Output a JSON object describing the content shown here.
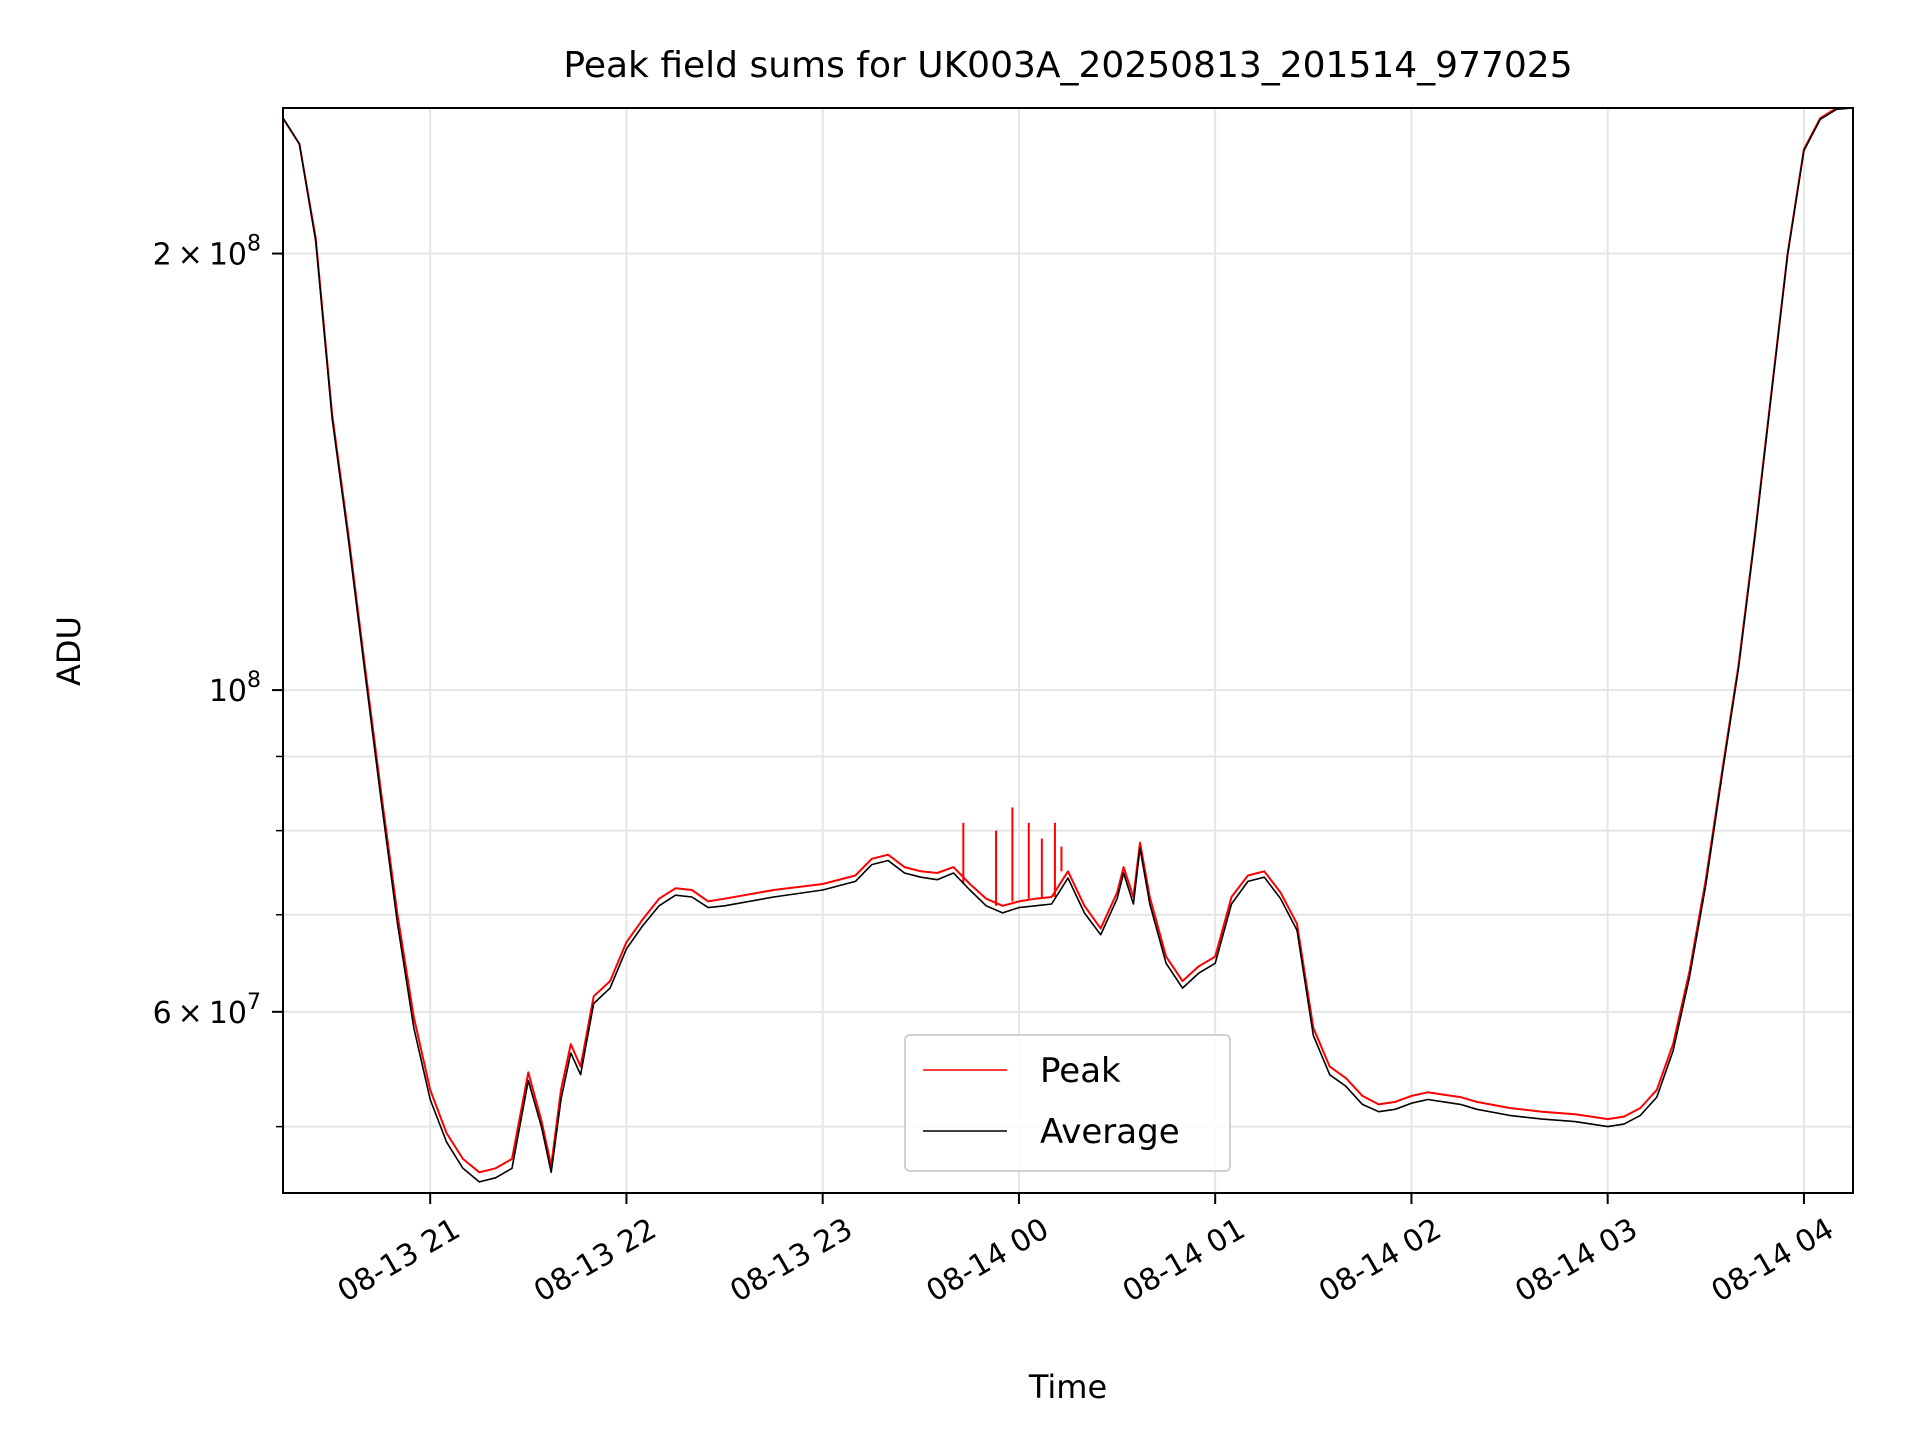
{
  "chart_data": {
    "type": "line",
    "title": "Peak field sums for UK003A_20250813_201514_977025",
    "xlabel": "Time",
    "ylabel": "ADU",
    "x_range": [
      "2025-08-13 20:15",
      "2025-08-14 04:15"
    ],
    "y_range": [
      45000000,
      252000000
    ],
    "y_scale": "log",
    "grid": true,
    "legend_position": "lower center",
    "x_tick_labels": [
      "08-13 21",
      "08-13 22",
      "08-13 23",
      "08-14 00",
      "08-14 01",
      "08-14 02",
      "08-14 03",
      "08-14 04"
    ],
    "x_ticks": [
      "2025-08-13 21:00",
      "2025-08-13 22:00",
      "2025-08-13 23:00",
      "2025-08-14 00:00",
      "2025-08-14 01:00",
      "2025-08-14 02:00",
      "2025-08-14 03:00",
      "2025-08-14 04:00"
    ],
    "y_major_ticks": [
      {
        "value": 200000000,
        "mantissa": "2",
        "exponent": "8"
      },
      {
        "value": 100000000,
        "mantissa": "",
        "exponent": "8"
      },
      {
        "value": 60000000,
        "mantissa": "6",
        "exponent": "7"
      }
    ],
    "y_minor_ticks": [
      50000000,
      70000000,
      80000000,
      90000000
    ],
    "series": [
      {
        "name": "Peak",
        "color": "#ff0000",
        "x": [
          "2025-08-13 20:15",
          "2025-08-13 20:20",
          "2025-08-13 20:25",
          "2025-08-13 20:30",
          "2025-08-13 20:35",
          "2025-08-13 20:40",
          "2025-08-13 20:45",
          "2025-08-13 20:50",
          "2025-08-13 20:55",
          "2025-08-13 21:00",
          "2025-08-13 21:05",
          "2025-08-13 21:10",
          "2025-08-13 21:15",
          "2025-08-13 21:20",
          "2025-08-13 21:25",
          "2025-08-13 21:30",
          "2025-08-13 21:34",
          "2025-08-13 21:37",
          "2025-08-13 21:40",
          "2025-08-13 21:43",
          "2025-08-13 21:46",
          "2025-08-13 21:50",
          "2025-08-13 21:55",
          "2025-08-13 22:00",
          "2025-08-13 22:05",
          "2025-08-13 22:10",
          "2025-08-13 22:15",
          "2025-08-13 22:20",
          "2025-08-13 22:25",
          "2025-08-13 22:30",
          "2025-08-13 22:45",
          "2025-08-13 23:00",
          "2025-08-13 23:10",
          "2025-08-13 23:15",
          "2025-08-13 23:20",
          "2025-08-13 23:25",
          "2025-08-13 23:30",
          "2025-08-13 23:35",
          "2025-08-13 23:40",
          "2025-08-13 23:45",
          "2025-08-13 23:50",
          "2025-08-13 23:55",
          "2025-08-14 00:00",
          "2025-08-14 00:05",
          "2025-08-14 00:10",
          "2025-08-14 00:15",
          "2025-08-14 00:20",
          "2025-08-14 00:25",
          "2025-08-14 00:30",
          "2025-08-14 00:32",
          "2025-08-14 00:35",
          "2025-08-14 00:37",
          "2025-08-14 00:40",
          "2025-08-14 00:45",
          "2025-08-14 00:50",
          "2025-08-14 00:55",
          "2025-08-14 01:00",
          "2025-08-14 01:05",
          "2025-08-14 01:10",
          "2025-08-14 01:15",
          "2025-08-14 01:20",
          "2025-08-14 01:25",
          "2025-08-14 01:30",
          "2025-08-14 01:35",
          "2025-08-14 01:40",
          "2025-08-14 01:45",
          "2025-08-14 01:50",
          "2025-08-14 01:55",
          "2025-08-14 02:00",
          "2025-08-14 02:05",
          "2025-08-14 02:10",
          "2025-08-14 02:15",
          "2025-08-14 02:20",
          "2025-08-14 02:30",
          "2025-08-14 02:40",
          "2025-08-14 02:50",
          "2025-08-14 02:55",
          "2025-08-14 03:00",
          "2025-08-14 03:05",
          "2025-08-14 03:10",
          "2025-08-14 03:15",
          "2025-08-14 03:20",
          "2025-08-14 03:25",
          "2025-08-14 03:30",
          "2025-08-14 03:35",
          "2025-08-14 03:40",
          "2025-08-14 03:45",
          "2025-08-14 03:50",
          "2025-08-14 03:55",
          "2025-08-14 04:00",
          "2025-08-14 04:05",
          "2025-08-14 04:10",
          "2025-08-14 04:15"
        ],
        "y": [
          248000000,
          238000000,
          205000000,
          155000000,
          128000000,
          104000000,
          85000000,
          70000000,
          59500000,
          53000000,
          49500000,
          47500000,
          46500000,
          46800000,
          47500000,
          54500000,
          50500000,
          47000000,
          53000000,
          57000000,
          55000000,
          61500000,
          63000000,
          67000000,
          69500000,
          71800000,
          73000000,
          72800000,
          71500000,
          71800000,
          72800000,
          73500000,
          74500000,
          76500000,
          77000000,
          75500000,
          75000000,
          74800000,
          75500000,
          73500000,
          71800000,
          71000000,
          71500000,
          71800000,
          72000000,
          75000000,
          71000000,
          68500000,
          72500000,
          75500000,
          72000000,
          78500000,
          72000000,
          65500000,
          63000000,
          64500000,
          65500000,
          72000000,
          74500000,
          75000000,
          72500000,
          69000000,
          58500000,
          55000000,
          54000000,
          52500000,
          51800000,
          52000000,
          52500000,
          52800000,
          52600000,
          52400000,
          52000000,
          51500000,
          51200000,
          51000000,
          50800000,
          50600000,
          50800000,
          51500000,
          53000000,
          57000000,
          64000000,
          74000000,
          88000000,
          104000000,
          128000000,
          160000000,
          200000000,
          236000000,
          248000000,
          252000000,
          252000000
        ],
        "spikes": [
          {
            "x": "2025-08-13 23:43",
            "y": 81000000
          },
          {
            "x": "2025-08-13 23:53",
            "y": 80000000
          },
          {
            "x": "2025-08-13 23:58",
            "y": 83000000
          },
          {
            "x": "2025-08-14 00:03",
            "y": 81000000
          },
          {
            "x": "2025-08-14 00:07",
            "y": 79000000
          },
          {
            "x": "2025-08-14 00:11",
            "y": 81000000
          },
          {
            "x": "2025-08-14 00:13",
            "y": 78000000
          }
        ]
      },
      {
        "name": "Average",
        "color": "#000000",
        "x": [
          "2025-08-13 20:15",
          "2025-08-13 20:20",
          "2025-08-13 20:25",
          "2025-08-13 20:30",
          "2025-08-13 20:35",
          "2025-08-13 20:40",
          "2025-08-13 20:45",
          "2025-08-13 20:50",
          "2025-08-13 20:55",
          "2025-08-13 21:00",
          "2025-08-13 21:05",
          "2025-08-13 21:10",
          "2025-08-13 21:15",
          "2025-08-13 21:20",
          "2025-08-13 21:25",
          "2025-08-13 21:30",
          "2025-08-13 21:34",
          "2025-08-13 21:37",
          "2025-08-13 21:40",
          "2025-08-13 21:43",
          "2025-08-13 21:46",
          "2025-08-13 21:50",
          "2025-08-13 21:55",
          "2025-08-13 22:00",
          "2025-08-13 22:05",
          "2025-08-13 22:10",
          "2025-08-13 22:15",
          "2025-08-13 22:20",
          "2025-08-13 22:25",
          "2025-08-13 22:30",
          "2025-08-13 22:45",
          "2025-08-13 23:00",
          "2025-08-13 23:10",
          "2025-08-13 23:15",
          "2025-08-13 23:20",
          "2025-08-13 23:25",
          "2025-08-13 23:30",
          "2025-08-13 23:35",
          "2025-08-13 23:40",
          "2025-08-13 23:45",
          "2025-08-13 23:50",
          "2025-08-13 23:55",
          "2025-08-14 00:00",
          "2025-08-14 00:05",
          "2025-08-14 00:10",
          "2025-08-14 00:15",
          "2025-08-14 00:20",
          "2025-08-14 00:25",
          "2025-08-14 00:30",
          "2025-08-14 00:32",
          "2025-08-14 00:35",
          "2025-08-14 00:37",
          "2025-08-14 00:40",
          "2025-08-14 00:45",
          "2025-08-14 00:50",
          "2025-08-14 00:55",
          "2025-08-14 01:00",
          "2025-08-14 01:05",
          "2025-08-14 01:10",
          "2025-08-14 01:15",
          "2025-08-14 01:20",
          "2025-08-14 01:25",
          "2025-08-14 01:30",
          "2025-08-14 01:35",
          "2025-08-14 01:40",
          "2025-08-14 01:45",
          "2025-08-14 01:50",
          "2025-08-14 01:55",
          "2025-08-14 02:00",
          "2025-08-14 02:05",
          "2025-08-14 02:10",
          "2025-08-14 02:15",
          "2025-08-14 02:20",
          "2025-08-14 02:30",
          "2025-08-14 02:40",
          "2025-08-14 02:50",
          "2025-08-14 02:55",
          "2025-08-14 03:00",
          "2025-08-14 03:05",
          "2025-08-14 03:10",
          "2025-08-14 03:15",
          "2025-08-14 03:20",
          "2025-08-14 03:25",
          "2025-08-14 03:30",
          "2025-08-14 03:35",
          "2025-08-14 03:40",
          "2025-08-14 03:45",
          "2025-08-14 03:50",
          "2025-08-14 03:55",
          "2025-08-14 04:00",
          "2025-08-14 04:05",
          "2025-08-14 04:10",
          "2025-08-14 04:15"
        ],
        "y": [
          248000000,
          238000000,
          204000000,
          154000000,
          127000000,
          103000000,
          84000000,
          69000000,
          58500000,
          52200000,
          48800000,
          46800000,
          45800000,
          46100000,
          46800000,
          53800000,
          50000000,
          46500000,
          52200000,
          56200000,
          54300000,
          60800000,
          62300000,
          66300000,
          68800000,
          71000000,
          72200000,
          72000000,
          70800000,
          71000000,
          72000000,
          72800000,
          73800000,
          75800000,
          76300000,
          74800000,
          74300000,
          74000000,
          74800000,
          72800000,
          71000000,
          70200000,
          70800000,
          71000000,
          71200000,
          74200000,
          70200000,
          67800000,
          71800000,
          74800000,
          71200000,
          77800000,
          71200000,
          64800000,
          62300000,
          63800000,
          64800000,
          71200000,
          73800000,
          74300000,
          71800000,
          68300000,
          57800000,
          54300000,
          53300000,
          51800000,
          51200000,
          51400000,
          51900000,
          52200000,
          52000000,
          51800000,
          51400000,
          50900000,
          50600000,
          50400000,
          50200000,
          50000000,
          50200000,
          50900000,
          52400000,
          56400000,
          63400000,
          73400000,
          87500000,
          103500000,
          127500000,
          159500000,
          199500000,
          235500000,
          247500000,
          251500000,
          252000000
        ]
      }
    ]
  }
}
